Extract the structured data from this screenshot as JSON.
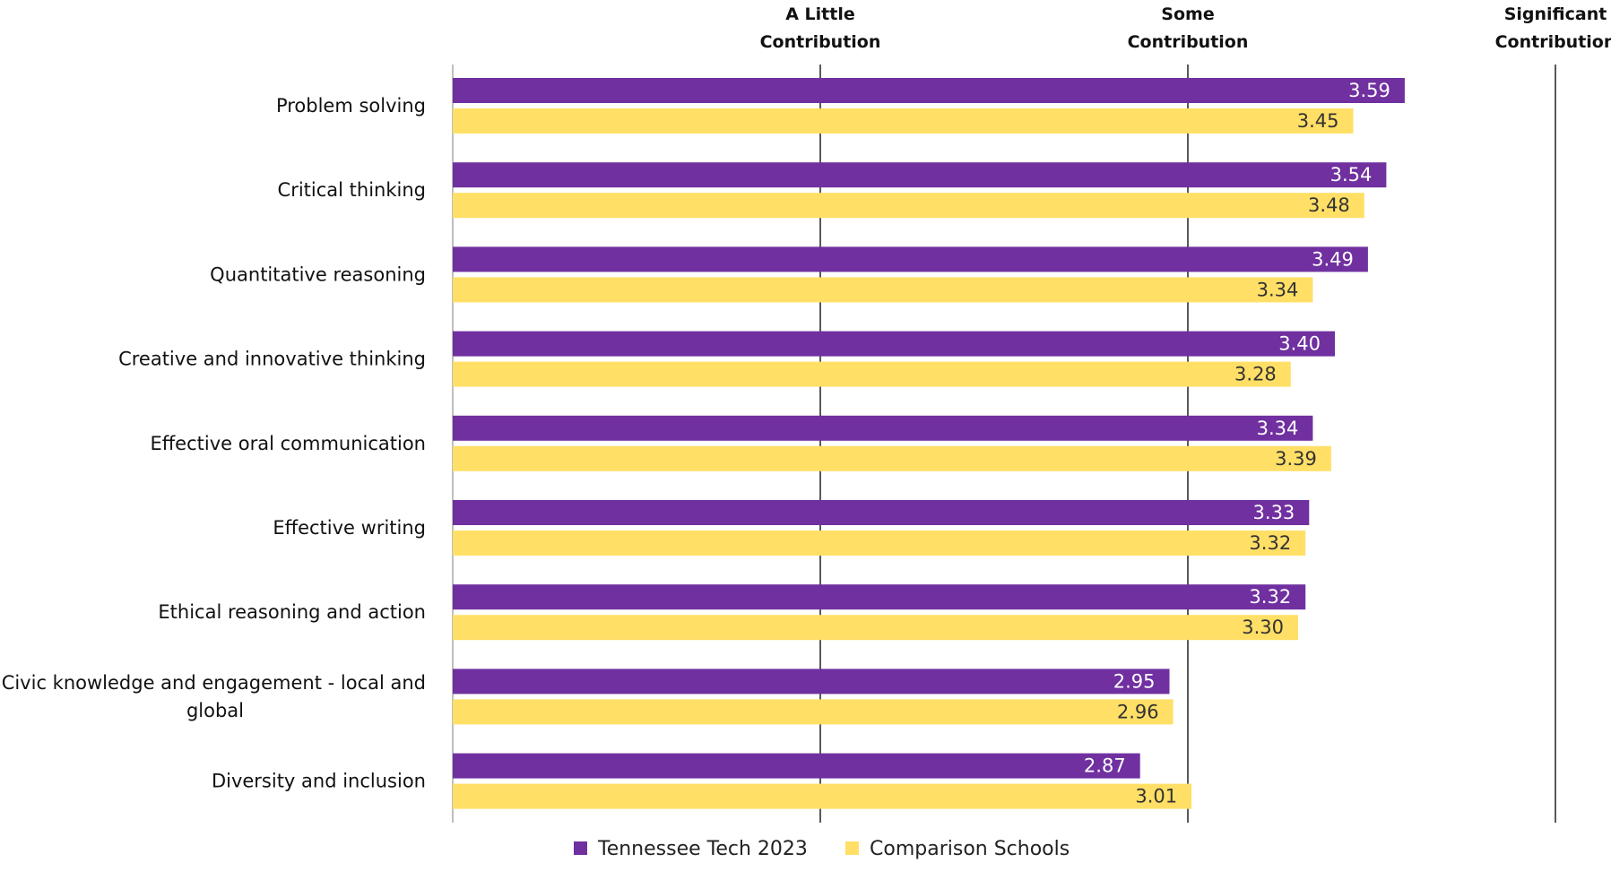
{
  "chart_data": {
    "type": "bar",
    "orientation": "horizontal",
    "categories": [
      "Problem solving",
      "Critical thinking",
      "Quantitative reasoning",
      "Creative and innovative thinking",
      "Effective oral communication",
      "Effective writing",
      "Ethical reasoning and action",
      "Civic knowledge and engagement - local and global",
      "Diversity and inclusion"
    ],
    "series": [
      {
        "name": "Tennessee Tech 2023",
        "color": "#7030a0",
        "values": [
          3.59,
          3.54,
          3.49,
          3.4,
          3.34,
          3.33,
          3.32,
          2.95,
          2.87
        ],
        "labels": [
          "3.59",
          "3.54",
          "3.49",
          "3.40",
          "3.34",
          "3.33",
          "3.32",
          "2.95",
          "2.87"
        ]
      },
      {
        "name": "Comparison Schools",
        "color": "#ffdf66",
        "values": [
          3.45,
          3.48,
          3.34,
          3.28,
          3.39,
          3.32,
          3.3,
          2.96,
          3.01
        ],
        "labels": [
          "3.45",
          "3.48",
          "3.34",
          "3.28",
          "3.39",
          "3.32",
          "3.30",
          "2.96",
          "3.01"
        ]
      }
    ],
    "xlim": [
      1,
      4
    ],
    "reference_lines": [
      {
        "value": 2,
        "label": [
          "A Little",
          "Contribution"
        ]
      },
      {
        "value": 3,
        "label": [
          "Some",
          "Contribution"
        ]
      },
      {
        "value": 4,
        "label": [
          "Significant",
          "Contribution"
        ]
      }
    ],
    "legend_position": "bottom",
    "grid": false
  }
}
